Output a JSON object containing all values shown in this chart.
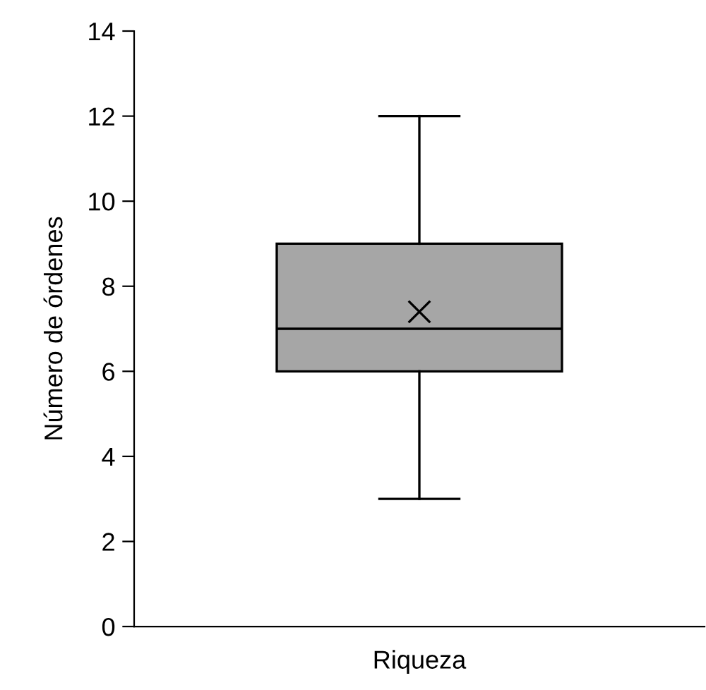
{
  "chart_data": {
    "type": "box",
    "categories": [
      "Riqueza"
    ],
    "ylabel": "Número de órdenes",
    "ylim": [
      0,
      14
    ],
    "yticks": [
      0,
      2,
      4,
      6,
      8,
      10,
      12,
      14
    ],
    "grid": false,
    "color": "#a6a6a6",
    "boxes": [
      {
        "low": 3,
        "q1": 6,
        "median": 7,
        "q3": 9,
        "high": 12,
        "mean": 7.4
      }
    ]
  }
}
